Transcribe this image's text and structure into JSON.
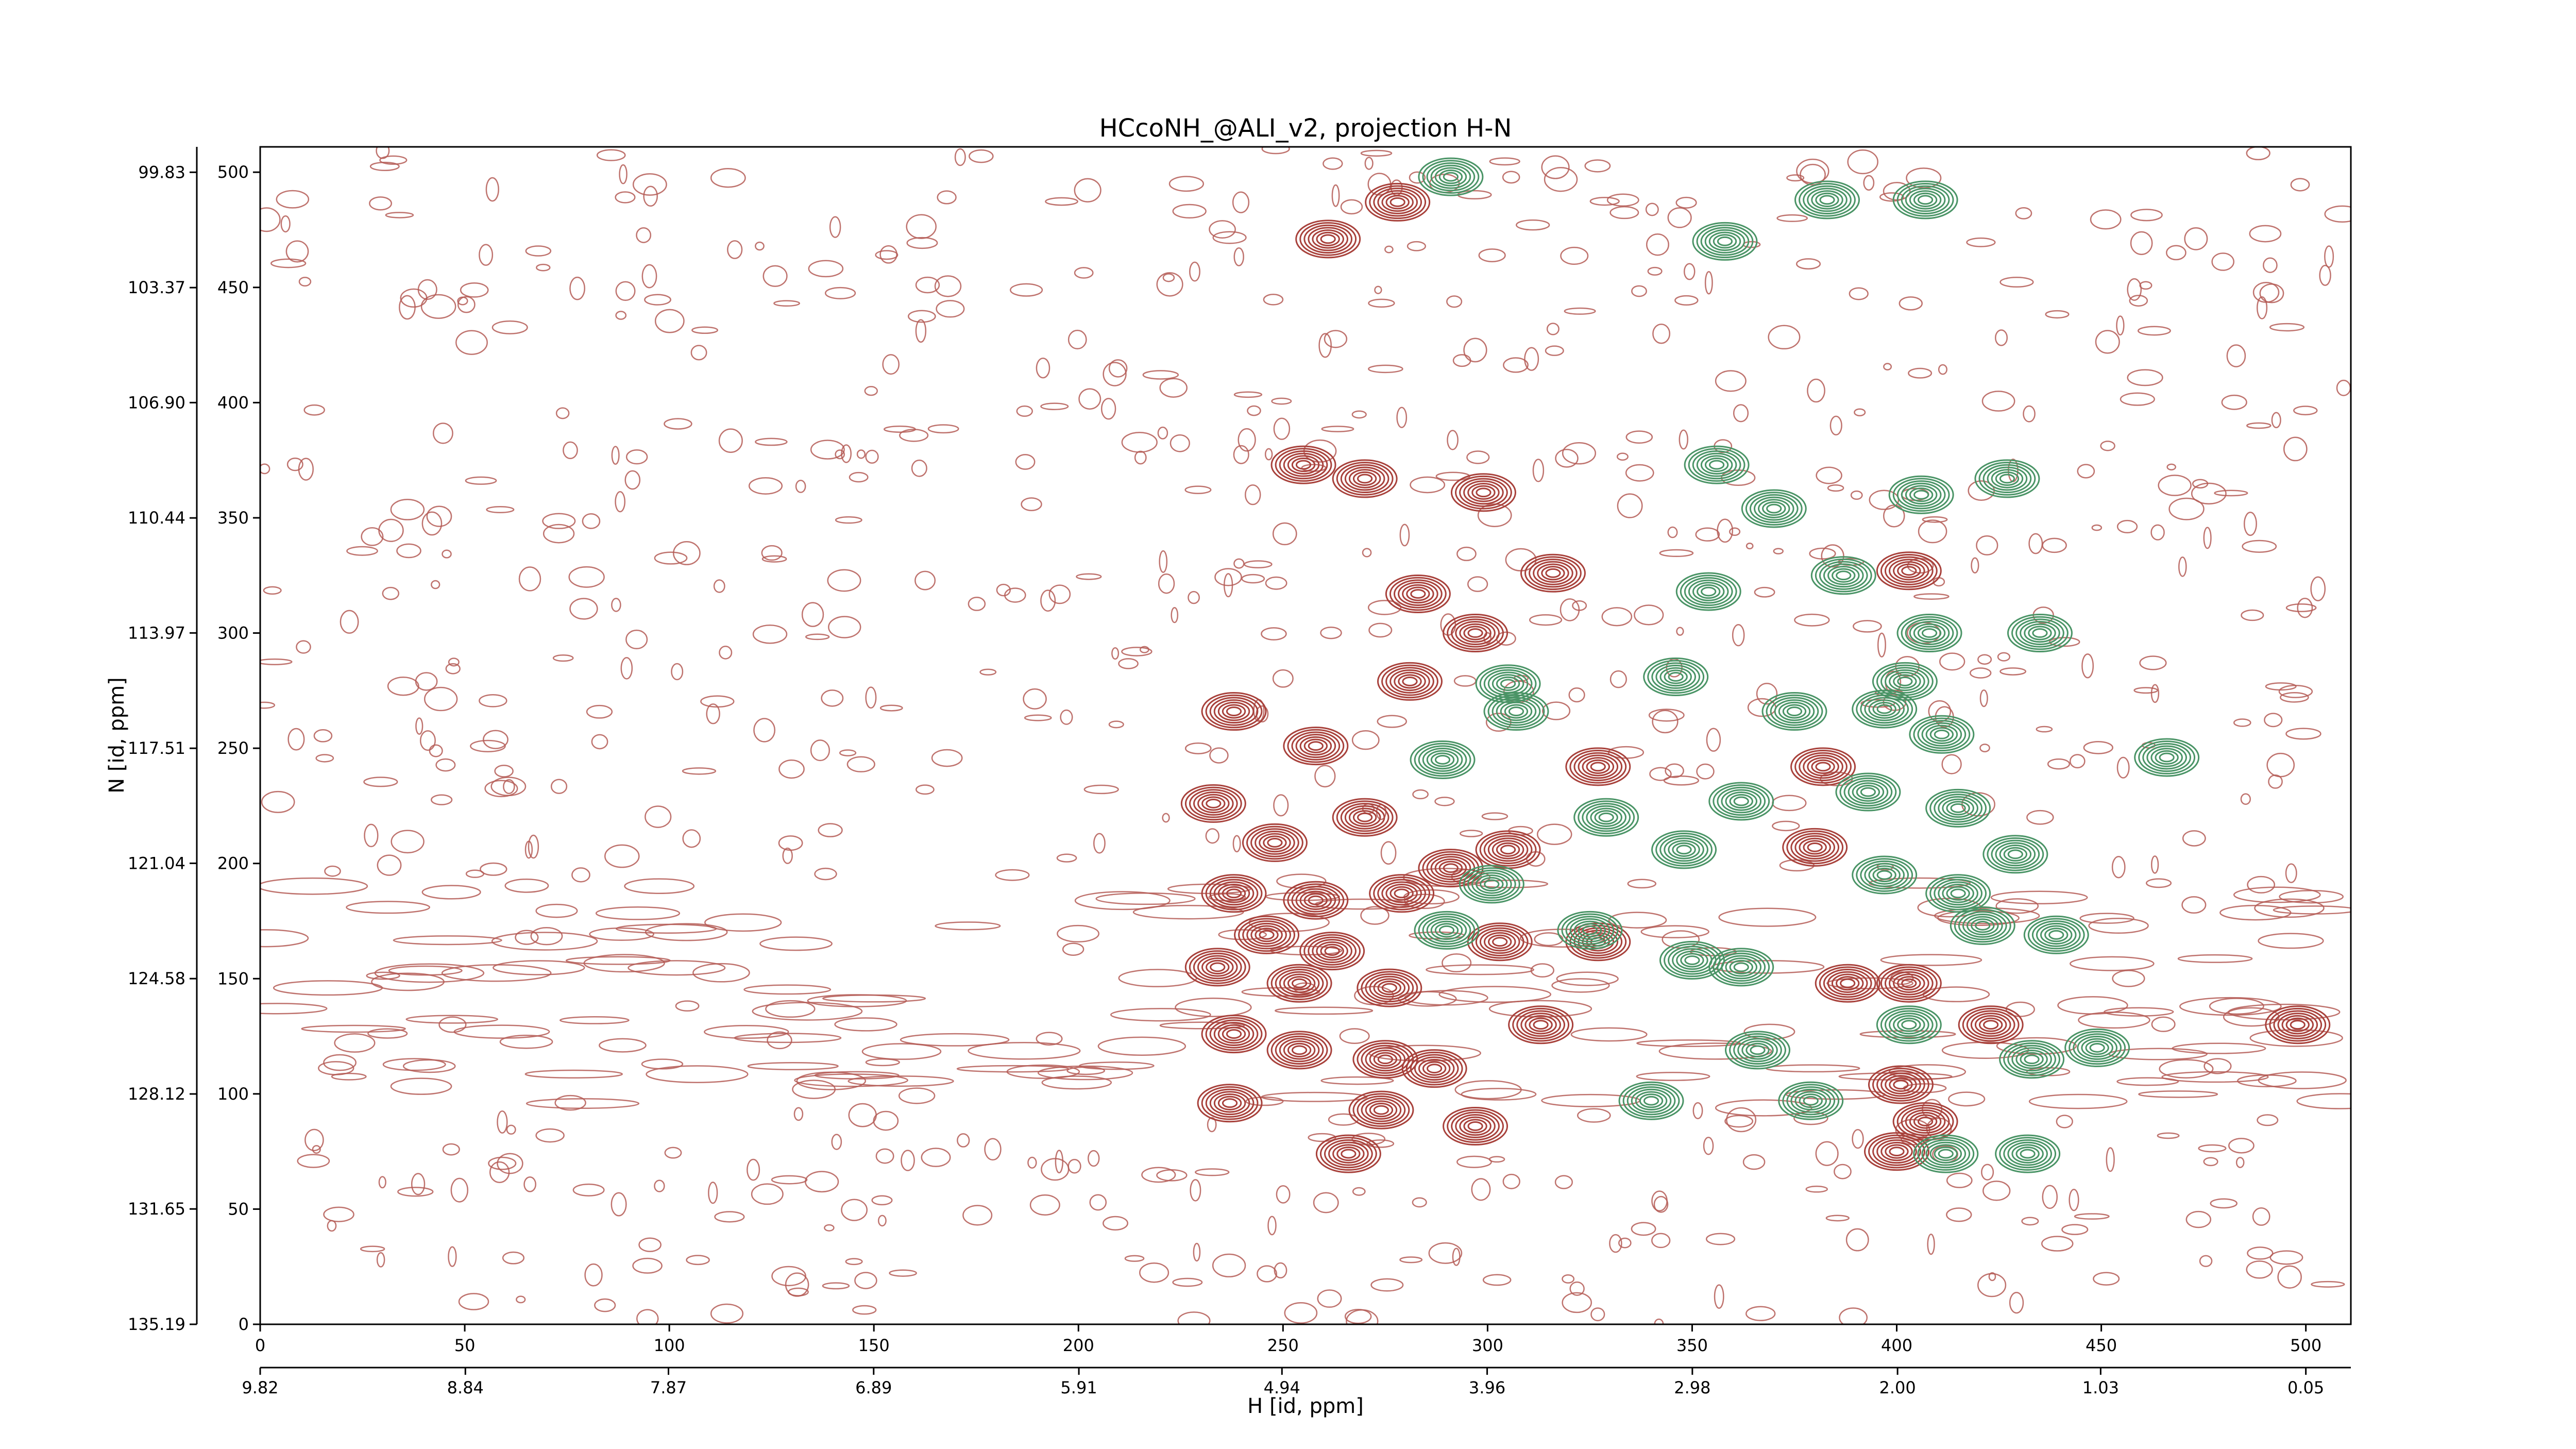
{
  "chart_data": {
    "type": "contour",
    "title": "HCcoNH_@ALI_v2, projection H-N",
    "xlabel": "H [id, ppm]",
    "ylabel": "N [id, ppm]",
    "xlim": [
      0,
      511
    ],
    "xticks": [
      0,
      50,
      100,
      150,
      200,
      250,
      300,
      350,
      400,
      450,
      500
    ],
    "ylim": [
      0,
      511
    ],
    "yticks": [
      0,
      50,
      100,
      150,
      200,
      250,
      300,
      350,
      400,
      450,
      500
    ],
    "x2lim": [
      9.82,
      -0.165
    ],
    "x2ticks": [
      9.82,
      8.84,
      7.87,
      6.89,
      5.91,
      4.94,
      3.96,
      2.98,
      {
        "value": 2,
        "label": "2.00"
      },
      1.03,
      0.05
    ],
    "y2lim": [
      135.19,
      99.05
    ],
    "y2ticks": [
      135.19,
      131.65,
      128.12,
      124.58,
      121.04,
      117.51,
      113.97,
      110.44,
      {
        "value": 106.9,
        "label": "106.90"
      },
      103.37,
      99.83
    ],
    "series": [
      {
        "color": "#a8413b",
        "x": [
          278,
          261,
          255,
          270,
          299,
          316,
          283,
          297,
          281,
          238,
          258,
          327,
          233,
          270,
          248,
          305,
          380,
          238,
          258,
          279,
          291,
          246,
          262,
          303,
          327,
          234,
          254,
          276,
          313,
          388,
          403,
          238,
          254,
          275,
          287,
          237,
          274,
          297,
          266,
          401,
          407,
          400,
          403,
          423,
          498,
          382
        ],
        "y": [
          487,
          471,
          373,
          367,
          361,
          326,
          317,
          300,
          279,
          266,
          251,
          242,
          226,
          220,
          209,
          206,
          207,
          187,
          184,
          187,
          198,
          169,
          162,
          166,
          166,
          155,
          148,
          146,
          130,
          148,
          148,
          126,
          119,
          115,
          111,
          96,
          93,
          86,
          74,
          104,
          88,
          75,
          327,
          130,
          130,
          242
        ]
      },
      {
        "color": "#4a9466",
        "x": [
          291,
          383,
          407,
          358,
          356,
          370,
          406,
          427,
          354,
          387,
          408,
          435,
          346,
          402,
          305,
          307,
          375,
          397,
          411,
          289,
          362,
          393,
          415,
          329,
          348,
          397,
          415,
          429,
          301,
          290,
          325,
          350,
          362,
          421,
          439,
          403,
          366,
          433,
          449,
          340,
          379,
          412,
          432,
          466
        ],
        "y": [
          498,
          488,
          488,
          470,
          373,
          354,
          360,
          367,
          318,
          325,
          300,
          300,
          281,
          279,
          278,
          266,
          266,
          267,
          256,
          245,
          227,
          231,
          224,
          220,
          206,
          195,
          187,
          204,
          191,
          171,
          171,
          158,
          155,
          173,
          169,
          130,
          119,
          115,
          120,
          97,
          97,
          74,
          74,
          246
        ]
      }
    ]
  }
}
